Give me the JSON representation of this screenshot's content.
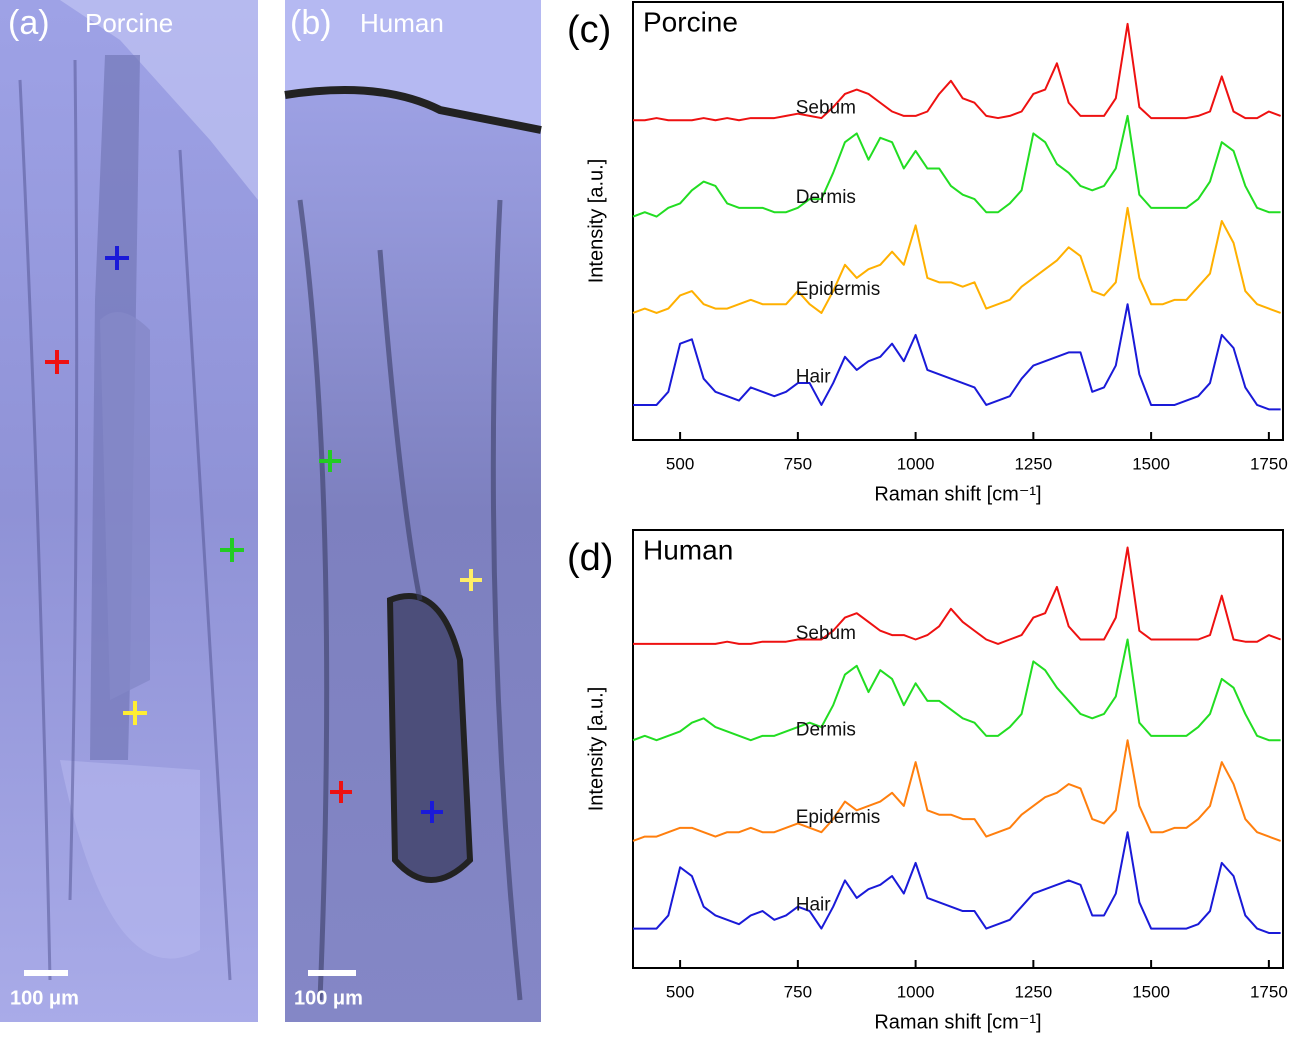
{
  "panels": [
    {
      "label": "(a)",
      "title": "Porcine",
      "scale_bar": "100 μm"
    },
    {
      "label": "(b)",
      "title": "Human",
      "scale_bar": "100 μm"
    }
  ],
  "chart_data": [
    {
      "type": "line",
      "label": "(c)",
      "title": "Porcine",
      "xlabel": "Raman shift [cm⁻¹]",
      "ylabel": "Intensity [a.u.]",
      "xlim": [
        400,
        1780
      ],
      "xticks": [
        500,
        750,
        1000,
        1250,
        1500,
        1750
      ],
      "ylim": [
        0,
        100
      ],
      "x": [
        400,
        425,
        450,
        475,
        500,
        525,
        550,
        575,
        600,
        625,
        650,
        675,
        700,
        725,
        750,
        775,
        800,
        825,
        850,
        875,
        900,
        925,
        950,
        975,
        1000,
        1025,
        1050,
        1075,
        1100,
        1125,
        1150,
        1175,
        1200,
        1225,
        1250,
        1275,
        1300,
        1325,
        1350,
        1375,
        1400,
        1425,
        1450,
        1475,
        1500,
        1525,
        1550,
        1575,
        1600,
        1625,
        1650,
        1675,
        1700,
        1725,
        1750,
        1775
      ],
      "series": [
        {
          "name": "Sebum",
          "color": "#ee1111",
          "values": [
            73,
            73,
            73.5,
            73,
            73,
            73,
            73.5,
            73,
            73.5,
            73,
            73.5,
            73.5,
            73.5,
            74,
            74.5,
            74,
            73.5,
            76,
            79,
            80,
            79,
            77,
            75,
            74,
            74,
            75,
            79,
            82,
            78,
            77,
            74,
            73.5,
            74,
            75,
            79,
            80,
            86,
            77,
            74,
            74,
            74,
            78,
            95,
            76,
            73.5,
            73.5,
            73.5,
            73.5,
            74,
            75,
            83,
            75,
            73.5,
            73.5,
            75,
            74
          ]
        },
        {
          "name": "Dermis",
          "color": "#22dd22",
          "values": [
            51,
            52,
            51,
            53,
            54,
            57,
            59,
            58,
            54,
            53,
            53,
            53,
            52,
            52,
            53,
            55,
            55,
            61,
            68,
            70,
            64,
            69,
            68,
            62,
            66,
            62,
            62,
            58,
            56,
            55,
            52,
            52,
            54,
            57,
            70,
            68,
            63,
            61,
            58,
            57,
            58,
            62,
            74,
            56,
            53,
            53,
            53,
            53,
            55,
            59,
            68,
            66,
            58,
            53,
            52,
            52
          ]
        },
        {
          "name": "Epidermis",
          "color": "#ffb000",
          "values": [
            29,
            30,
            29,
            30,
            33,
            34,
            31,
            30,
            30,
            31,
            32,
            31,
            31,
            31,
            34,
            31,
            29,
            34,
            40,
            37,
            39,
            40,
            43,
            40,
            49,
            37,
            36,
            36,
            35,
            36,
            30,
            31,
            32,
            35,
            37,
            39,
            41,
            44,
            42,
            34,
            33,
            36,
            53,
            37,
            31,
            31,
            32,
            32,
            35,
            38,
            50,
            45,
            34,
            31,
            30,
            29
          ]
        },
        {
          "name": "Hair",
          "color": "#1a1ad8",
          "values": [
            8,
            8,
            8,
            11,
            22,
            23,
            14,
            11,
            10,
            9,
            12,
            11,
            10,
            11,
            13,
            13,
            8,
            13,
            19,
            16,
            18,
            19,
            22,
            18,
            24,
            16,
            15,
            14,
            13,
            12,
            8,
            9,
            10,
            14,
            17,
            18,
            19,
            20,
            20,
            11,
            12,
            17,
            31,
            15,
            8,
            8,
            8,
            9,
            10,
            13,
            24,
            21,
            12,
            8,
            7,
            7
          ]
        }
      ]
    },
    {
      "type": "line",
      "label": "(d)",
      "title": "Human",
      "xlabel": "Raman shift [cm⁻¹]",
      "ylabel": "Intensity [a.u.]",
      "xlim": [
        400,
        1780
      ],
      "xticks": [
        500,
        750,
        1000,
        1250,
        1500,
        1750
      ],
      "ylim": [
        0,
        100
      ],
      "x": [
        400,
        425,
        450,
        475,
        500,
        525,
        550,
        575,
        600,
        625,
        650,
        675,
        700,
        725,
        750,
        775,
        800,
        825,
        850,
        875,
        900,
        925,
        950,
        975,
        1000,
        1025,
        1050,
        1075,
        1100,
        1125,
        1150,
        1175,
        1200,
        1225,
        1250,
        1275,
        1300,
        1325,
        1350,
        1375,
        1400,
        1425,
        1450,
        1475,
        1500,
        1525,
        1550,
        1575,
        1600,
        1625,
        1650,
        1675,
        1700,
        1725,
        1750,
        1775
      ],
      "series": [
        {
          "name": "Sebum",
          "color": "#ee1111",
          "values": [
            74,
            74,
            74,
            74,
            74,
            74,
            74,
            74,
            74.5,
            74,
            74,
            74.5,
            74.5,
            74.5,
            75,
            75,
            75,
            77,
            80,
            81,
            79,
            77,
            76,
            76,
            75,
            76,
            78,
            82,
            79,
            77,
            75,
            74,
            75,
            76,
            80,
            81,
            87,
            78,
            75,
            75,
            75,
            80,
            96,
            77,
            75,
            75,
            75,
            75,
            75,
            76,
            85,
            75,
            74.5,
            74.5,
            76,
            75
          ]
        },
        {
          "name": "Dermis",
          "color": "#22dd22",
          "values": [
            52,
            53,
            52,
            53,
            54,
            56,
            57,
            55,
            54,
            53,
            52,
            53,
            53,
            54,
            55,
            56,
            55,
            60,
            67,
            69,
            63,
            68,
            66,
            60,
            65,
            61,
            61,
            59,
            57,
            56,
            53,
            53,
            55,
            58,
            70,
            68,
            64,
            61,
            58,
            57,
            58,
            62,
            75,
            56,
            53,
            53,
            53,
            53,
            55,
            58,
            66,
            64,
            58,
            53,
            52,
            52
          ]
        },
        {
          "name": "Epidermis",
          "color": "#ff7f0e",
          "values": [
            29,
            30,
            30,
            31,
            32,
            32,
            31,
            30,
            31,
            31,
            32,
            31,
            31,
            32,
            33,
            32,
            31,
            34,
            38,
            36,
            37,
            38,
            40,
            37,
            47,
            36,
            35,
            35,
            34,
            34,
            30,
            31,
            32,
            35,
            37,
            39,
            40,
            42,
            41,
            34,
            33,
            36,
            52,
            37,
            31,
            31,
            32,
            32,
            34,
            37,
            47,
            42,
            34,
            31,
            30,
            29
          ]
        },
        {
          "name": "Hair",
          "color": "#1a1ad8",
          "values": [
            9,
            9,
            9,
            12,
            23,
            21,
            14,
            12,
            11,
            10,
            12,
            13,
            11,
            12,
            14,
            13,
            9,
            14,
            20,
            16,
            18,
            19,
            21,
            17,
            24,
            16,
            15,
            14,
            13,
            13,
            9,
            10,
            11,
            14,
            17,
            18,
            19,
            20,
            19,
            12,
            12,
            17,
            31,
            15,
            9,
            9,
            9,
            9,
            10,
            13,
            24,
            21,
            12,
            9,
            8,
            8
          ]
        }
      ]
    }
  ]
}
